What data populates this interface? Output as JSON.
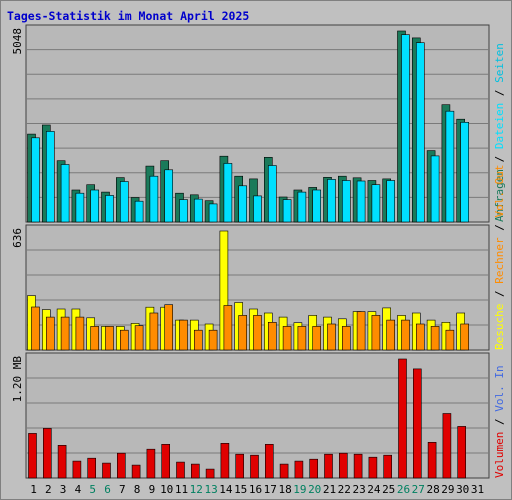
{
  "title": "Tages-Statistik im Monat April 2025",
  "colors": {
    "background": "#c0c0c0",
    "panel": "#b8b8b8",
    "grid": "#7a7a7a",
    "title": "#0000cc",
    "weekday": "#000000",
    "weekend": "#008060",
    "anfragen": "#1a7a5a",
    "dateien": "#00e0ff",
    "seiten": "#00c0e0",
    "besuche": "#ffff00",
    "rechner": "#ff8c00",
    "kb_out": "#ff8c00",
    "kb_in": "#4169e1",
    "volumen": "#e00000",
    "slash": "#000000"
  },
  "weekend_days": [
    "5",
    "6",
    "12",
    "13",
    "19",
    "20",
    "26",
    "27"
  ],
  "chart_data": [
    {
      "type": "bar",
      "categories": [
        "1",
        "2",
        "3",
        "4",
        "5",
        "6",
        "7",
        "8",
        "9",
        "10",
        "11",
        "12",
        "13",
        "14",
        "15",
        "16",
        "17",
        "18",
        "19",
        "20",
        "21",
        "22",
        "23",
        "24",
        "25",
        "26",
        "27",
        "28",
        "29",
        "30",
        "31"
      ],
      "y_tick_label": "5048",
      "ylim": [
        0,
        5048
      ],
      "legend_labels": [
        "Anfragen",
        "Dateien",
        "Seiten"
      ],
      "series": [
        {
          "name": "Anfragen",
          "values": [
            2324,
            2563,
            1619,
            845,
            986,
            789,
            1173,
            648,
            1478,
            1619,
            761,
            718,
            564,
            1738,
            1211,
            1140,
            1710,
            662,
            845,
            915,
            1182,
            1211,
            1169,
            1098,
            1140,
            5048,
            4865,
            1887,
            3099,
            2718,
            0
          ]
        },
        {
          "name": "Dateien",
          "values": [
            2225,
            2394,
            1521,
            761,
            845,
            704,
            1070,
            549,
            1211,
            1380,
            592,
            606,
            479,
            1549,
            958,
            690,
            1493,
            592,
            789,
            845,
            1126,
            1098,
            1084,
            986,
            1098,
            4949,
            4738,
            1746,
            2929,
            2634,
            0
          ]
        },
        {
          "name": "Seiten",
          "values": [
            0,
            0,
            0,
            0,
            0,
            0,
            0,
            0,
            0,
            0,
            0,
            0,
            0,
            0,
            0,
            0,
            0,
            0,
            0,
            0,
            0,
            0,
            0,
            0,
            0,
            0,
            0,
            0,
            0,
            0,
            0
          ]
        }
      ]
    },
    {
      "type": "bar",
      "categories": [
        "1",
        "2",
        "3",
        "4",
        "5",
        "6",
        "7",
        "8",
        "9",
        "10",
        "11",
        "12",
        "13",
        "14",
        "15",
        "16",
        "17",
        "18",
        "19",
        "20",
        "21",
        "22",
        "23",
        "24",
        "25",
        "26",
        "27",
        "28",
        "29",
        "30",
        "31"
      ],
      "y_tick_label": "636",
      "ylim": [
        0,
        636
      ],
      "legend_labels": [
        "Besuche",
        "Rechner",
        "Vol. Out"
      ],
      "series": [
        {
          "name": "Besuche",
          "values": [
            291,
            216,
            219,
            219,
            172,
            126,
            126,
            142,
            229,
            229,
            160,
            160,
            139,
            636,
            254,
            219,
            198,
            176,
            146,
            185,
            176,
            167,
            205,
            205,
            225,
            185,
            198,
            160,
            148,
            198,
            0
          ]
        },
        {
          "name": "Rechner",
          "values": [
            230,
            176,
            176,
            176,
            126,
            126,
            106,
            130,
            198,
            242,
            160,
            106,
            106,
            238,
            185,
            185,
            148,
            126,
            126,
            126,
            139,
            126,
            205,
            185,
            160,
            160,
            139,
            126,
            106,
            139,
            0
          ]
        }
      ]
    },
    {
      "type": "bar",
      "categories": [
        "1",
        "2",
        "3",
        "4",
        "5",
        "6",
        "7",
        "8",
        "9",
        "10",
        "11",
        "12",
        "13",
        "14",
        "15",
        "16",
        "17",
        "18",
        "19",
        "20",
        "21",
        "22",
        "23",
        "24",
        "25",
        "26",
        "27",
        "28",
        "29",
        "30",
        "31"
      ],
      "y_tick_label": "1.20 MB",
      "ylim": [
        0,
        1.2
      ],
      "legend_labels": [
        "Volumen",
        "Vol. In"
      ],
      "series": [
        {
          "name": "Volumen",
          "values": [
            0.45,
            0.5,
            0.33,
            0.17,
            0.2,
            0.15,
            0.25,
            0.13,
            0.29,
            0.34,
            0.16,
            0.14,
            0.09,
            0.35,
            0.24,
            0.23,
            0.34,
            0.14,
            0.17,
            0.19,
            0.24,
            0.25,
            0.24,
            0.21,
            0.23,
            1.2,
            1.1,
            0.36,
            0.65,
            0.52,
            0
          ]
        }
      ]
    }
  ]
}
